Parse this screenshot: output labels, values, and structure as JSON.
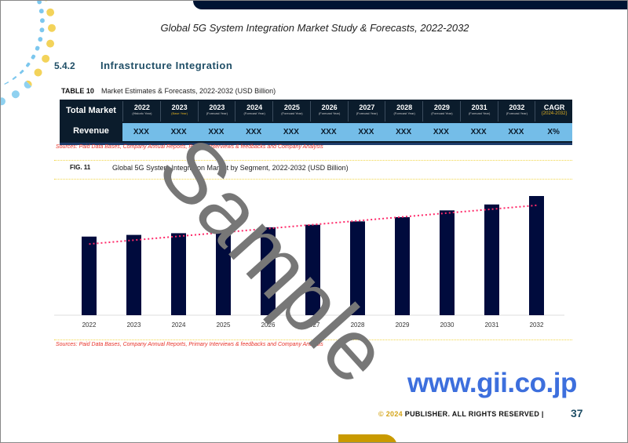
{
  "document": {
    "title": "Global 5G System Integration Market Study & Forecasts, 2022-2032",
    "section_number": "5.4.2",
    "section_title": "Infrastructure Integration"
  },
  "table": {
    "label": "TABLE 10",
    "caption": "Market Estimates & Forecasts, 2022-2032 (USD Billion)",
    "row_header": "Total Market",
    "row_label": "Revenue",
    "columns": [
      {
        "year": "2022",
        "sub": "(Historic Year)"
      },
      {
        "year": "2023",
        "sub": "(Base Year)"
      },
      {
        "year": "2023",
        "sub": "(Forecast Year)"
      },
      {
        "year": "2024",
        "sub": "(Forecast Year)"
      },
      {
        "year": "2025",
        "sub": "(Forecast Year)"
      },
      {
        "year": "2026",
        "sub": "(Forecast Year)"
      },
      {
        "year": "2027",
        "sub": "(Forecast Year)"
      },
      {
        "year": "2028",
        "sub": "(Forecast Year)"
      },
      {
        "year": "2029",
        "sub": "(Forecast Year)"
      },
      {
        "year": "2031",
        "sub": "(Forecast Year)"
      },
      {
        "year": "2032",
        "sub": "(Forecast Year)"
      },
      {
        "year": "CAGR",
        "sub": "(2024-2032)"
      }
    ],
    "values": [
      "XXX",
      "XXX",
      "XXX",
      "XXX",
      "XXX",
      "XXX",
      "XXX",
      "XXX",
      "XXX",
      "XXX",
      "XXX",
      "X%"
    ]
  },
  "source": "Sources: Paid Data Bases, Company Annual Reports, Primary Interviews & feedbacks and Company Analysis",
  "figure": {
    "label": "FIG. 11",
    "caption": "Global 5G System Integration Market by Segment, 2022-2032 (USD Billion)"
  },
  "chart_data": {
    "type": "bar",
    "categories": [
      "2022",
      "2023",
      "2024",
      "2025",
      "2026",
      "2027",
      "2028",
      "2029",
      "2030",
      "2031",
      "2032"
    ],
    "values": [
      93,
      95,
      97,
      100,
      104,
      107,
      111,
      116,
      124,
      131,
      141
    ],
    "trendline": true,
    "grid": false,
    "colors": {
      "bar": "#000b3d",
      "trend": "#ff2a6a"
    }
  },
  "watermark": "Sample",
  "footer": {
    "url": "www.gii.co.jp",
    "copyright_year": "© 2024",
    "copyright_text": "PUBLISHER. ALL RIGHTS RESERVED |",
    "page": "37"
  }
}
